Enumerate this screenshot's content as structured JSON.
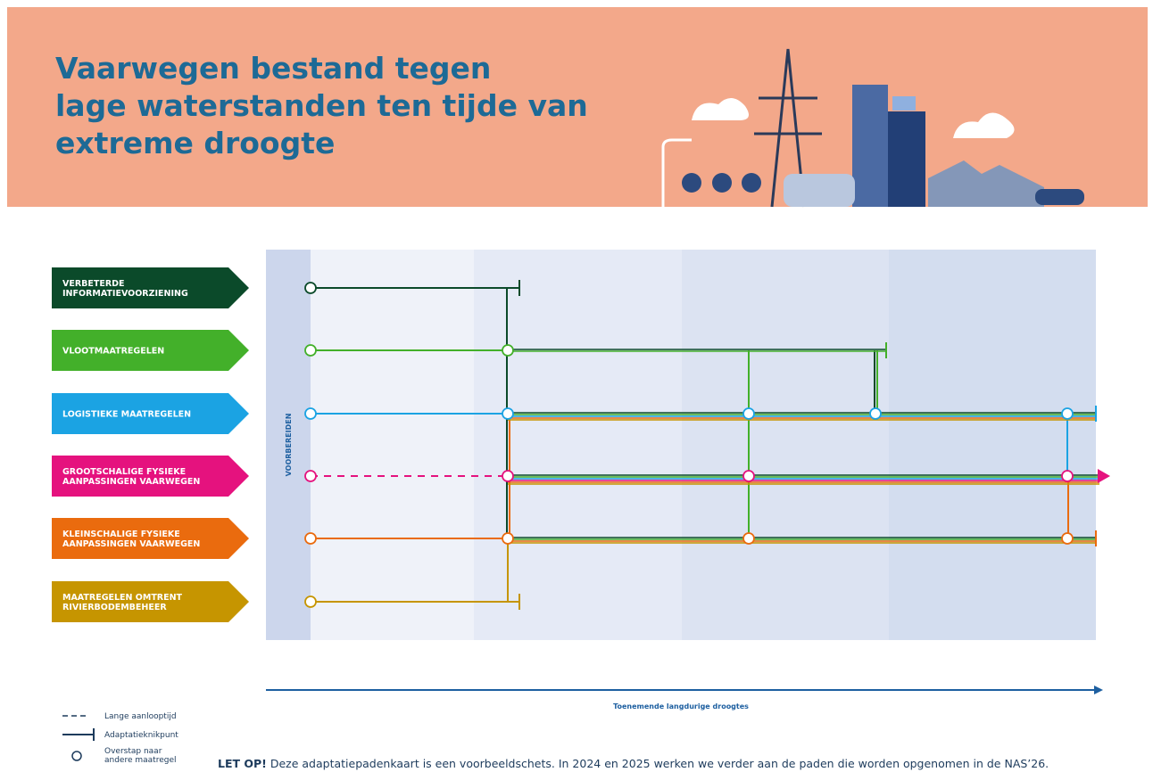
{
  "header": {
    "title_lines": [
      "Vaarwegen bestand tegen",
      "lage waterstanden ten tijde van",
      "extreme droogte"
    ]
  },
  "measures": [
    {
      "lines": [
        "VERBETERDE",
        "INFORMATIEVOORZIENING"
      ]
    },
    {
      "lines": [
        "VLOOTMAATREGELEN"
      ]
    },
    {
      "lines": [
        "LOGISTIEKE MAATREGELEN"
      ]
    },
    {
      "lines": [
        "GROOTSCHALIGE FYSIEKE",
        "AANPASSINGEN VAARWEGEN"
      ]
    },
    {
      "lines": [
        "KLEINSCHALIGE FYSIEKE",
        "AANPASSINGEN VAARWEGEN"
      ]
    },
    {
      "lines": [
        "MAATREGELEN OMTRENT",
        "RIVIERBODEMBEHEER"
      ]
    }
  ],
  "phase_label": "VOORBEREIDEN",
  "axis_label": "Toenemende langdurige droogtes",
  "legend": {
    "dashed": "Lange aanlooptijd",
    "tipping_point": "Adaptatieknikpunt",
    "transfer_lines": [
      "Overstap naar",
      "andere maatregel"
    ]
  },
  "note": {
    "emphasis": "LET OP!",
    "text": " Deze adaptatiepadenkaart is een voorbeeldschets. In 2024 en 2025 werken we verder aan de paden die worden opgenomen in de NAS’26."
  }
}
